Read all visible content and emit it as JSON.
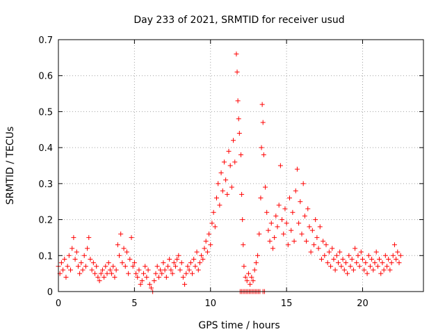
{
  "chart_data": {
    "type": "scatter",
    "title": "Day 233 of 2021, SRMTID for receiver usud",
    "xlabel": "GPS time / hours",
    "ylabel": "SRMTID / TECUs",
    "xlim": [
      0,
      24
    ],
    "ylim": [
      0,
      0.7
    ],
    "x_ticks": [
      "0",
      "5",
      "10",
      "15",
      "20"
    ],
    "y_ticks": [
      "0",
      "0.1",
      "0.2",
      "0.3",
      "0.4",
      "0.5",
      "0.6",
      "0.7"
    ],
    "grid": true,
    "marker": "+",
    "color": "#ff0000",
    "series": [
      {
        "name": "SRMTID",
        "points": [
          [
            0.0,
            0.07
          ],
          [
            0.1,
            0.05
          ],
          [
            0.2,
            0.08
          ],
          [
            0.3,
            0.06
          ],
          [
            0.4,
            0.09
          ],
          [
            0.5,
            0.04
          ],
          [
            0.6,
            0.07
          ],
          [
            0.7,
            0.1
          ],
          [
            0.8,
            0.06
          ],
          [
            0.9,
            0.12
          ],
          [
            1.0,
            0.15
          ],
          [
            1.1,
            0.09
          ],
          [
            1.2,
            0.11
          ],
          [
            1.3,
            0.07
          ],
          [
            1.4,
            0.05
          ],
          [
            1.5,
            0.08
          ],
          [
            1.6,
            0.06
          ],
          [
            1.7,
            0.1
          ],
          [
            1.8,
            0.07
          ],
          [
            1.9,
            0.12
          ],
          [
            2.0,
            0.15
          ],
          [
            2.1,
            0.09
          ],
          [
            2.2,
            0.06
          ],
          [
            2.3,
            0.08
          ],
          [
            2.4,
            0.05
          ],
          [
            2.5,
            0.07
          ],
          [
            2.6,
            0.04
          ],
          [
            2.7,
            0.03
          ],
          [
            2.8,
            0.05
          ],
          [
            2.9,
            0.06
          ],
          [
            3.0,
            0.04
          ],
          [
            3.1,
            0.07
          ],
          [
            3.2,
            0.05
          ],
          [
            3.3,
            0.08
          ],
          [
            3.4,
            0.06
          ],
          [
            3.5,
            0.05
          ],
          [
            3.6,
            0.07
          ],
          [
            3.7,
            0.04
          ],
          [
            3.8,
            0.06
          ],
          [
            3.9,
            0.13
          ],
          [
            4.0,
            0.1
          ],
          [
            4.1,
            0.16
          ],
          [
            4.2,
            0.08
          ],
          [
            4.3,
            0.12
          ],
          [
            4.4,
            0.07
          ],
          [
            4.5,
            0.11
          ],
          [
            4.6,
            0.05
          ],
          [
            4.7,
            0.09
          ],
          [
            4.8,
            0.15
          ],
          [
            4.9,
            0.07
          ],
          [
            5.0,
            0.08
          ],
          [
            5.1,
            0.05
          ],
          [
            5.2,
            0.04
          ],
          [
            5.3,
            0.06
          ],
          [
            5.4,
            0.02
          ],
          [
            5.5,
            0.03
          ],
          [
            5.6,
            0.05
          ],
          [
            5.7,
            0.07
          ],
          [
            5.8,
            0.04
          ],
          [
            5.9,
            0.06
          ],
          [
            6.0,
            0.02
          ],
          [
            6.1,
            0.01
          ],
          [
            6.2,
            0.0
          ],
          [
            6.3,
            0.03
          ],
          [
            6.4,
            0.05
          ],
          [
            6.5,
            0.07
          ],
          [
            6.6,
            0.04
          ],
          [
            6.7,
            0.06
          ],
          [
            6.8,
            0.05
          ],
          [
            6.9,
            0.08
          ],
          [
            7.0,
            0.06
          ],
          [
            7.1,
            0.04
          ],
          [
            7.2,
            0.07
          ],
          [
            7.3,
            0.09
          ],
          [
            7.4,
            0.06
          ],
          [
            7.5,
            0.05
          ],
          [
            7.6,
            0.08
          ],
          [
            7.7,
            0.07
          ],
          [
            7.8,
            0.09
          ],
          [
            7.9,
            0.1
          ],
          [
            8.0,
            0.06
          ],
          [
            8.1,
            0.08
          ],
          [
            8.2,
            0.04
          ],
          [
            8.3,
            0.02
          ],
          [
            8.4,
            0.05
          ],
          [
            8.5,
            0.07
          ],
          [
            8.6,
            0.06
          ],
          [
            8.7,
            0.08
          ],
          [
            8.8,
            0.05
          ],
          [
            8.9,
            0.09
          ],
          [
            9.0,
            0.07
          ],
          [
            9.1,
            0.11
          ],
          [
            9.2,
            0.06
          ],
          [
            9.3,
            0.08
          ],
          [
            9.4,
            0.1
          ],
          [
            9.5,
            0.09
          ],
          [
            9.6,
            0.12
          ],
          [
            9.7,
            0.14
          ],
          [
            9.8,
            0.11
          ],
          [
            9.9,
            0.16
          ],
          [
            10.0,
            0.13
          ],
          [
            10.1,
            0.19
          ],
          [
            10.2,
            0.22
          ],
          [
            10.3,
            0.18
          ],
          [
            10.4,
            0.26
          ],
          [
            10.5,
            0.3
          ],
          [
            10.6,
            0.24
          ],
          [
            10.7,
            0.33
          ],
          [
            10.8,
            0.28
          ],
          [
            10.9,
            0.36
          ],
          [
            11.0,
            0.31
          ],
          [
            11.1,
            0.27
          ],
          [
            11.2,
            0.39
          ],
          [
            11.3,
            0.35
          ],
          [
            11.4,
            0.29
          ],
          [
            11.5,
            0.42
          ],
          [
            11.6,
            0.36
          ],
          [
            11.7,
            0.66
          ],
          [
            11.75,
            0.61
          ],
          [
            11.8,
            0.53
          ],
          [
            11.85,
            0.48
          ],
          [
            11.9,
            0.44
          ],
          [
            12.0,
            0.38
          ],
          [
            12.05,
            0.27
          ],
          [
            12.1,
            0.2
          ],
          [
            12.15,
            0.13
          ],
          [
            12.2,
            0.07
          ],
          [
            12.3,
            0.04
          ],
          [
            12.4,
            0.03
          ],
          [
            12.5,
            0.05
          ],
          [
            12.6,
            0.02
          ],
          [
            12.7,
            0.04
          ],
          [
            12.8,
            0.03
          ],
          [
            12.9,
            0.06
          ],
          [
            13.0,
            0.08
          ],
          [
            13.1,
            0.1
          ],
          [
            13.2,
            0.16
          ],
          [
            13.3,
            0.26
          ],
          [
            13.35,
            0.4
          ],
          [
            13.4,
            0.52
          ],
          [
            13.45,
            0.47
          ],
          [
            13.5,
            0.38
          ],
          [
            13.6,
            0.29
          ],
          [
            13.7,
            0.22
          ],
          [
            13.8,
            0.17
          ],
          [
            13.9,
            0.14
          ],
          [
            14.0,
            0.19
          ],
          [
            14.1,
            0.12
          ],
          [
            14.2,
            0.15
          ],
          [
            14.3,
            0.21
          ],
          [
            14.4,
            0.18
          ],
          [
            14.5,
            0.24
          ],
          [
            14.6,
            0.35
          ],
          [
            14.7,
            0.2
          ],
          [
            14.8,
            0.16
          ],
          [
            14.9,
            0.23
          ],
          [
            15.0,
            0.19
          ],
          [
            15.1,
            0.13
          ],
          [
            15.2,
            0.26
          ],
          [
            15.3,
            0.17
          ],
          [
            15.4,
            0.22
          ],
          [
            15.5,
            0.14
          ],
          [
            15.6,
            0.28
          ],
          [
            15.7,
            0.34
          ],
          [
            15.8,
            0.19
          ],
          [
            15.9,
            0.25
          ],
          [
            16.0,
            0.16
          ],
          [
            16.1,
            0.3
          ],
          [
            16.2,
            0.21
          ],
          [
            16.3,
            0.14
          ],
          [
            16.4,
            0.23
          ],
          [
            16.5,
            0.18
          ],
          [
            16.6,
            0.11
          ],
          [
            16.7,
            0.17
          ],
          [
            16.8,
            0.13
          ],
          [
            16.9,
            0.2
          ],
          [
            17.0,
            0.15
          ],
          [
            17.1,
            0.12
          ],
          [
            17.2,
            0.18
          ],
          [
            17.3,
            0.09
          ],
          [
            17.4,
            0.14
          ],
          [
            17.5,
            0.1
          ],
          [
            17.6,
            0.13
          ],
          [
            17.7,
            0.08
          ],
          [
            17.8,
            0.11
          ],
          [
            17.9,
            0.07
          ],
          [
            18.0,
            0.12
          ],
          [
            18.1,
            0.09
          ],
          [
            18.2,
            0.06
          ],
          [
            18.3,
            0.1
          ],
          [
            18.4,
            0.08
          ],
          [
            18.5,
            0.11
          ],
          [
            18.6,
            0.07
          ],
          [
            18.7,
            0.09
          ],
          [
            18.8,
            0.06
          ],
          [
            18.9,
            0.08
          ],
          [
            19.0,
            0.05
          ],
          [
            19.1,
            0.1
          ],
          [
            19.2,
            0.07
          ],
          [
            19.3,
            0.09
          ],
          [
            19.4,
            0.06
          ],
          [
            19.5,
            0.12
          ],
          [
            19.6,
            0.08
          ],
          [
            19.7,
            0.1
          ],
          [
            19.8,
            0.07
          ],
          [
            19.9,
            0.11
          ],
          [
            20.0,
            0.09
          ],
          [
            20.1,
            0.06
          ],
          [
            20.2,
            0.08
          ],
          [
            20.3,
            0.05
          ],
          [
            20.4,
            0.1
          ],
          [
            20.5,
            0.07
          ],
          [
            20.6,
            0.09
          ],
          [
            20.7,
            0.06
          ],
          [
            20.8,
            0.08
          ],
          [
            20.9,
            0.11
          ],
          [
            21.0,
            0.07
          ],
          [
            21.1,
            0.09
          ],
          [
            21.2,
            0.05
          ],
          [
            21.3,
            0.08
          ],
          [
            21.4,
            0.06
          ],
          [
            21.5,
            0.1
          ],
          [
            21.6,
            0.07
          ],
          [
            21.7,
            0.09
          ],
          [
            21.8,
            0.06
          ],
          [
            21.9,
            0.08
          ],
          [
            22.0,
            0.1
          ],
          [
            22.1,
            0.13
          ],
          [
            22.2,
            0.09
          ],
          [
            22.3,
            0.11
          ],
          [
            22.4,
            0.08
          ],
          [
            22.5,
            0.1
          ],
          [
            11.95,
            0.0
          ],
          [
            12.05,
            0.0
          ],
          [
            12.15,
            0.0
          ],
          [
            12.25,
            0.0
          ],
          [
            12.35,
            0.0
          ],
          [
            12.45,
            0.0
          ],
          [
            12.55,
            0.0
          ],
          [
            12.65,
            0.0
          ],
          [
            12.75,
            0.0
          ],
          [
            12.85,
            0.0
          ],
          [
            12.95,
            0.0
          ],
          [
            13.05,
            0.0
          ],
          [
            13.15,
            0.0
          ],
          [
            13.25,
            0.0
          ],
          [
            13.45,
            0.0
          ],
          [
            13.55,
            0.0
          ]
        ]
      }
    ]
  }
}
